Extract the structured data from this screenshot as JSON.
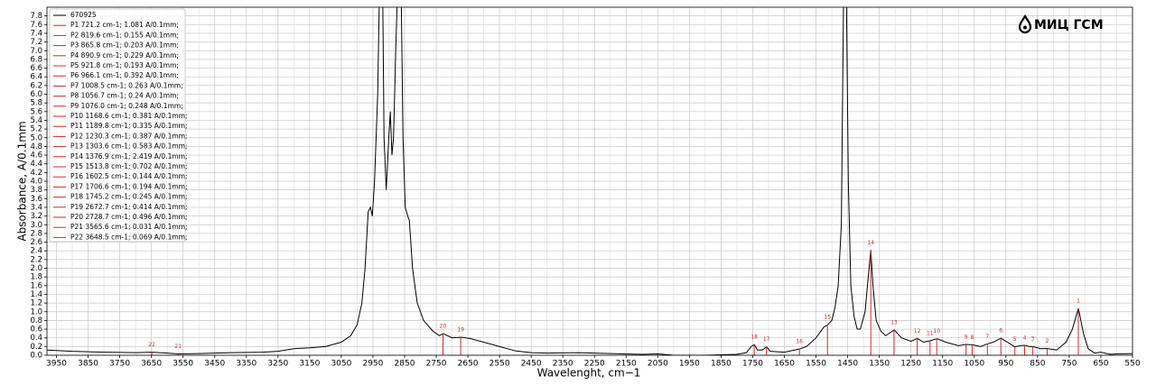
{
  "chart_data": {
    "type": "line",
    "watermark": "МИЦ ГСМ",
    "xlabel": "Wavelenght, cm−1",
    "ylabel": "Absorbance, A/0.1mm",
    "xlim": [
      3980,
      550
    ],
    "ylim": [
      0,
      8.0
    ],
    "xticks": [
      3950,
      3850,
      3750,
      3650,
      3550,
      3450,
      3350,
      3250,
      3150,
      3050,
      2950,
      2850,
      2750,
      2650,
      2550,
      2450,
      2350,
      2250,
      2150,
      2050,
      1950,
      1850,
      1750,
      1650,
      1550,
      1450,
      1350,
      1250,
      1150,
      1050,
      950,
      850,
      750,
      650,
      550
    ],
    "x_minor_ticks": [
      3900,
      3800,
      3700,
      3600,
      3500,
      3400,
      3300,
      3200,
      3100,
      3000,
      2900,
      2800,
      2700,
      2600,
      2500,
      2400,
      2300,
      2200,
      2100,
      2000,
      1900,
      1800,
      1700,
      1600,
      1500,
      1400,
      1300,
      1200,
      1100,
      1000,
      900,
      800,
      700,
      600
    ],
    "yticks": [
      {
        "value": 0,
        "label": "0.0"
      },
      0.2,
      0.4,
      0.6,
      0.8,
      {
        "value": 1,
        "label": "1.0"
      },
      1.2,
      1.4,
      1.6,
      1.8,
      {
        "value": 2,
        "label": "2.0"
      },
      2.2,
      2.4,
      2.6,
      2.8,
      {
        "value": 3,
        "label": "3.0"
      },
      3.2,
      3.4,
      3.6,
      3.8,
      {
        "value": 4,
        "label": "4.0"
      },
      4.2,
      4.4,
      4.6,
      4.8,
      {
        "value": 5,
        "label": "5.0"
      },
      5.2,
      5.4,
      5.6,
      5.8,
      {
        "value": 6,
        "label": "6.0"
      },
      6.2,
      6.4,
      6.6,
      6.8,
      {
        "value": 7,
        "label": "7.0"
      },
      7.2,
      7.4,
      7.6,
      7.8
    ],
    "grid": true,
    "legend": "upper left",
    "x": [
      3980,
      3900,
      3800,
      3700,
      3648,
      3600,
      3565,
      3500,
      3400,
      3300,
      3250,
      3200,
      3150,
      3100,
      3050,
      3020,
      3000,
      2985,
      2975,
      2965,
      2958,
      2952,
      2945,
      2935,
      2928,
      2920,
      2915,
      2908,
      2900,
      2895,
      2890,
      2885,
      2878,
      2870,
      2862,
      2855,
      2848,
      2840,
      2835,
      2825,
      2810,
      2790,
      2760,
      2740,
      2728,
      2700,
      2672,
      2640,
      2600,
      2550,
      2500,
      2450,
      2400,
      2300,
      2200,
      2100,
      2050,
      2000,
      1900,
      1800,
      1770,
      1755,
      1745,
      1735,
      1720,
      1706,
      1695,
      1650,
      1602,
      1580,
      1550,
      1525,
      1513,
      1500,
      1490,
      1480,
      1470,
      1462,
      1455,
      1448,
      1440,
      1430,
      1420,
      1410,
      1395,
      1385,
      1377,
      1370,
      1360,
      1345,
      1330,
      1303,
      1280,
      1250,
      1230,
      1210,
      1189,
      1168,
      1140,
      1100,
      1076,
      1056,
      1030,
      1008,
      990,
      966,
      945,
      922,
      905,
      891,
      875,
      866,
      840,
      820,
      790,
      760,
      740,
      721,
      705,
      690,
      670,
      650,
      620,
      600,
      550
    ],
    "series": [
      {
        "name": "670925",
        "color": "#000000",
        "values": [
          0.12,
          0.09,
          0.07,
          0.06,
          0.069,
          0.05,
          0.031,
          0.04,
          0.06,
          0.07,
          0.09,
          0.15,
          0.17,
          0.2,
          0.3,
          0.45,
          0.7,
          1.2,
          2.0,
          3.3,
          3.4,
          3.2,
          4.0,
          6.0,
          9.0,
          9.0,
          5.0,
          3.8,
          5.0,
          5.6,
          4.6,
          5.0,
          7.0,
          9.0,
          9.0,
          5.0,
          3.4,
          3.2,
          3.1,
          2.0,
          1.2,
          0.8,
          0.55,
          0.45,
          0.496,
          0.4,
          0.414,
          0.38,
          0.3,
          0.2,
          0.1,
          0.06,
          0.05,
          0.06,
          0.04,
          0.02,
          0.03,
          0.0,
          0.0,
          0.02,
          0.06,
          0.2,
          0.245,
          0.12,
          0.12,
          0.194,
          0.09,
          0.07,
          0.144,
          0.2,
          0.4,
          0.65,
          0.702,
          0.8,
          1.1,
          1.6,
          3.0,
          9.0,
          9.0,
          4.0,
          1.6,
          0.9,
          0.6,
          0.6,
          1.0,
          1.8,
          2.419,
          1.6,
          0.8,
          0.55,
          0.45,
          0.583,
          0.4,
          0.32,
          0.387,
          0.3,
          0.335,
          0.381,
          0.3,
          0.22,
          0.248,
          0.24,
          0.2,
          0.263,
          0.3,
          0.392,
          0.3,
          0.193,
          0.22,
          0.229,
          0.2,
          0.203,
          0.15,
          0.155,
          0.12,
          0.3,
          0.6,
          1.081,
          0.5,
          0.15,
          0.05,
          0.07,
          0.02,
          0.03,
          0.04
        ]
      }
    ],
    "peak_color": "#d62728",
    "peaks": [
      {
        "marker": "1",
        "name": "P1 721.2 cm-1; 1.081 A/0.1mm;",
        "x": 721.2,
        "value": 1.081
      },
      {
        "marker": "2",
        "name": "P2 819.6 cm-1; 0.155 A/0.1mm;",
        "x": 819.6,
        "value": 0.155
      },
      {
        "marker": "3",
        "name": "P3 865.8 cm-1; 0.203 A/0.1mm;",
        "x": 865.8,
        "value": 0.203
      },
      {
        "marker": "4",
        "name": "P4 890.9 cm-1; 0.229 A/0.1mm;",
        "x": 890.9,
        "value": 0.229
      },
      {
        "marker": "5",
        "name": "P5 921.8 cm-1; 0.193 A/0.1mm;",
        "x": 921.8,
        "value": 0.193
      },
      {
        "marker": "6",
        "name": "P6 966.1 cm-1; 0.392 A/0.1mm;",
        "x": 966.1,
        "value": 0.392
      },
      {
        "marker": "7",
        "name": "P7 1008.5 cm-1; 0.263 A/0.1mm;",
        "x": 1008.5,
        "value": 0.263
      },
      {
        "marker": "8",
        "name": "P8 1056.7 cm-1; 0.24 A/0.1mm;",
        "x": 1056.7,
        "value": 0.24
      },
      {
        "marker": "9",
        "name": "P9 1076.0 cm-1; 0.248 A/0.1mm;",
        "x": 1076.0,
        "value": 0.248
      },
      {
        "marker": "10",
        "name": "P10 1168.6 cm-1; 0.381 A/0.1mm;",
        "x": 1168.6,
        "value": 0.381
      },
      {
        "marker": "11",
        "name": "P11 1189.8 cm-1; 0.335 A/0.1mm;",
        "x": 1189.8,
        "value": 0.335
      },
      {
        "marker": "12",
        "name": "P12 1230.3 cm-1; 0.387 A/0.1mm;",
        "x": 1230.3,
        "value": 0.387
      },
      {
        "marker": "13",
        "name": "P13 1303.6 cm-1; 0.583 A/0.1mm;",
        "x": 1303.6,
        "value": 0.583
      },
      {
        "marker": "14",
        "name": "P14 1376.9 cm-1; 2.419 A/0.1mm;",
        "x": 1376.9,
        "value": 2.419
      },
      {
        "marker": "15",
        "name": "P15 1513.8 cm-1; 0.702 A/0.1mm;",
        "x": 1513.8,
        "value": 0.702
      },
      {
        "marker": "16",
        "name": "P16 1602.5 cm-1; 0.144 A/0.1mm;",
        "x": 1602.5,
        "value": 0.144
      },
      {
        "marker": "17",
        "name": "P17 1706.6 cm-1; 0.194 A/0.1mm;",
        "x": 1706.6,
        "value": 0.194
      },
      {
        "marker": "18",
        "name": "P18 1745.2 cm-1; 0.245 A/0.1mm;",
        "x": 1745.2,
        "value": 0.245
      },
      {
        "marker": "19",
        "name": "P19 2672.7 cm-1; 0.414 A/0.1mm;",
        "x": 2672.7,
        "value": 0.414
      },
      {
        "marker": "20",
        "name": "P20 2728.7 cm-1; 0.496 A/0.1mm;",
        "x": 2728.7,
        "value": 0.496
      },
      {
        "marker": "21",
        "name": "P21 3565.6 cm-1; 0.031 A/0.1mm;",
        "x": 3565.6,
        "value": 0.031
      },
      {
        "marker": "22",
        "name": "P22 3648.5 cm-1; 0.069 A/0.1mm;",
        "x": 3648.5,
        "value": 0.069
      }
    ]
  }
}
